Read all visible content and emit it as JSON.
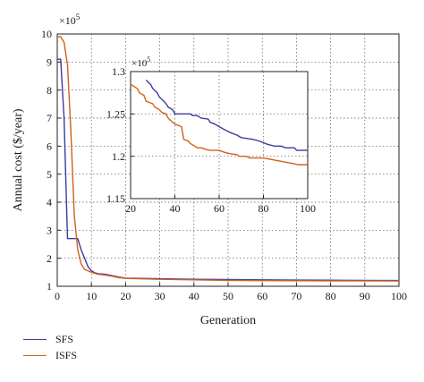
{
  "chart_data": [
    {
      "type": "line",
      "title": "",
      "xlabel": "Generation",
      "ylabel": "Annual cost ($/year)",
      "y_multiplier": "×10",
      "y_multiplier_exp": "5",
      "xlim": [
        0,
        100
      ],
      "ylim": [
        1,
        10
      ],
      "xticks": [
        0,
        10,
        20,
        30,
        40,
        50,
        60,
        70,
        80,
        90,
        100
      ],
      "yticks": [
        1,
        2,
        3,
        4,
        5,
        6,
        7,
        8,
        9,
        10
      ],
      "grid": true,
      "legend_position": "bottom-left, below axes",
      "series": [
        {
          "name": "SFS",
          "color": "#3b3b9e",
          "x": [
            0,
            1,
            2,
            3,
            4,
            5,
            6,
            7,
            8,
            9,
            10,
            11,
            12,
            14,
            16,
            18,
            20,
            25,
            30,
            40,
            50,
            60,
            70,
            80,
            90,
            100
          ],
          "y": [
            9.1,
            9.1,
            7.0,
            2.7,
            2.7,
            2.7,
            2.7,
            2.3,
            2.0,
            1.7,
            1.55,
            1.48,
            1.45,
            1.43,
            1.38,
            1.33,
            1.29,
            1.28,
            1.27,
            1.25,
            1.24,
            1.23,
            1.22,
            1.215,
            1.21,
            1.205
          ]
        },
        {
          "name": "ISFS",
          "color": "#d2601a",
          "x": [
            0,
            1,
            2,
            3,
            4,
            5,
            6,
            7,
            8,
            9,
            10,
            11,
            12,
            14,
            16,
            18,
            20,
            25,
            30,
            40,
            50,
            60,
            70,
            80,
            90,
            100
          ],
          "y": [
            9.9,
            9.9,
            9.7,
            8.9,
            6.5,
            3.5,
            2.3,
            1.8,
            1.6,
            1.55,
            1.5,
            1.46,
            1.43,
            1.4,
            1.36,
            1.31,
            1.28,
            1.265,
            1.25,
            1.23,
            1.21,
            1.2,
            1.198,
            1.195,
            1.193,
            1.19
          ]
        }
      ]
    },
    {
      "type": "line",
      "title": "",
      "xlabel": "",
      "ylabel": "",
      "y_multiplier": "×10",
      "y_multiplier_exp": "5",
      "xlim": [
        20,
        100
      ],
      "ylim": [
        1.15,
        1.3
      ],
      "xticks": [
        20,
        40,
        60,
        80,
        100
      ],
      "yticks": [
        1.15,
        1.2,
        1.25,
        1.3
      ],
      "grid": true,
      "series": [
        {
          "name": "SFS",
          "color": "#3b3b9e",
          "x": [
            27,
            29,
            30,
            32,
            33,
            35,
            36,
            37,
            39,
            40,
            47,
            48,
            50,
            52,
            55,
            56,
            58,
            60,
            62,
            65,
            68,
            70,
            75,
            78,
            80,
            82,
            85,
            88,
            90,
            94,
            95,
            100
          ],
          "y": [
            1.29,
            1.285,
            1.28,
            1.275,
            1.27,
            1.265,
            1.262,
            1.258,
            1.255,
            1.25,
            1.25,
            1.248,
            1.248,
            1.245,
            1.244,
            1.24,
            1.238,
            1.235,
            1.232,
            1.228,
            1.225,
            1.222,
            1.22,
            1.218,
            1.216,
            1.214,
            1.212,
            1.212,
            1.21,
            1.21,
            1.207,
            1.207
          ]
        },
        {
          "name": "ISFS",
          "color": "#d2601a",
          "x": [
            20,
            23,
            24,
            26,
            27,
            30,
            31,
            33,
            34,
            36,
            37,
            39,
            40,
            43,
            44,
            46,
            47,
            49,
            50,
            52,
            54,
            56,
            60,
            62,
            65,
            68,
            69,
            72,
            74,
            80,
            82,
            84,
            86,
            88,
            90,
            92,
            94,
            96,
            98,
            100
          ],
          "y": [
            1.285,
            1.28,
            1.275,
            1.272,
            1.265,
            1.262,
            1.258,
            1.255,
            1.252,
            1.25,
            1.245,
            1.24,
            1.238,
            1.235,
            1.22,
            1.218,
            1.215,
            1.212,
            1.21,
            1.21,
            1.208,
            1.207,
            1.207,
            1.205,
            1.203,
            1.202,
            1.2,
            1.2,
            1.198,
            1.198,
            1.197,
            1.196,
            1.195,
            1.194,
            1.193,
            1.192,
            1.191,
            1.19,
            1.19,
            1.19
          ]
        }
      ]
    }
  ]
}
